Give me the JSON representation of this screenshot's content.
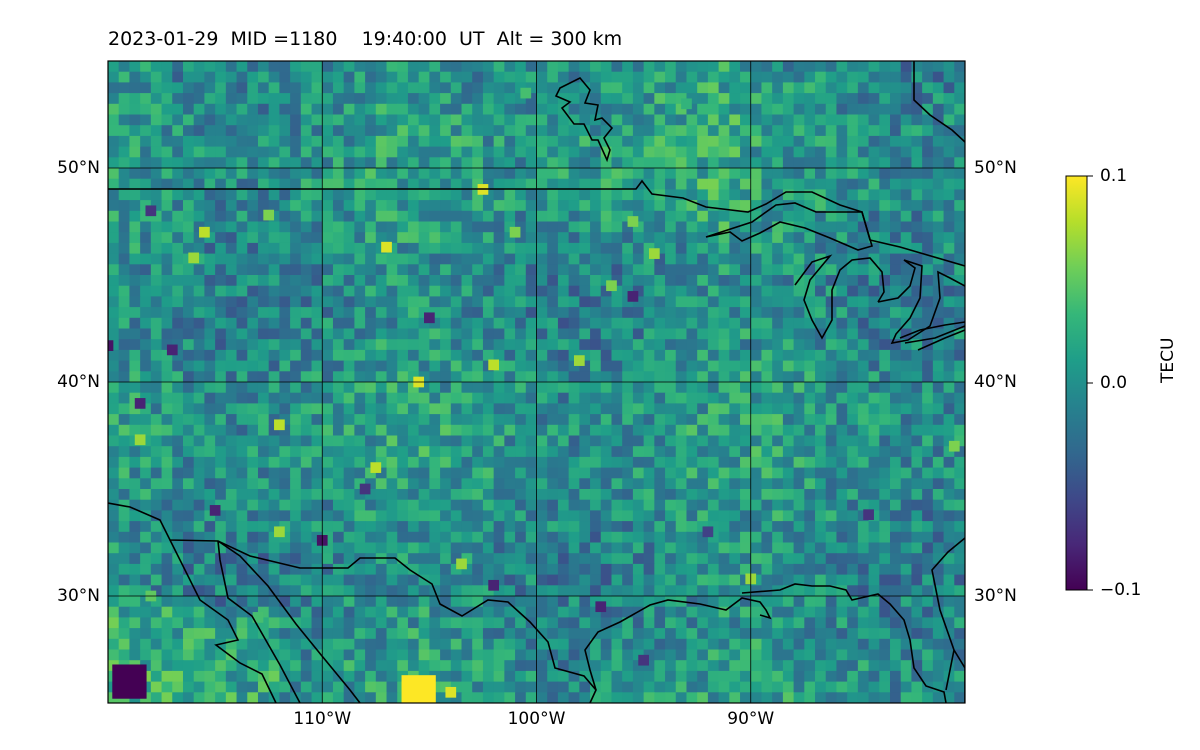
{
  "title": "2023-01-29  MID =1180    19:40:00  UT  Alt = 300 km",
  "chart_data": {
    "type": "heatmap",
    "title": "2023-01-29  MID =1180    19:40:00  UT  Alt = 300 km",
    "map": "North America (central/eastern US, Great Lakes region)",
    "projection": "PlateCarree",
    "lon_range": [
      -120,
      -80
    ],
    "lat_range": [
      25,
      55
    ],
    "gridlines": true,
    "lat_ticks": [
      {
        "value": 50,
        "label": "50°N"
      },
      {
        "value": 40,
        "label": "40°N"
      },
      {
        "value": 30,
        "label": "30°N"
      }
    ],
    "lon_ticks": [
      {
        "value": -110,
        "label": "110°W"
      },
      {
        "value": -100,
        "label": "100°W"
      },
      {
        "value": -90,
        "label": "90°W"
      }
    ],
    "colormap": "viridis",
    "colorbar": {
      "label": "TECU",
      "vmin": -0.1,
      "vmax": 0.1,
      "ticks": [
        {
          "value": 0.1,
          "label": "0.1"
        },
        {
          "value": 0.0,
          "label": "0.0"
        },
        {
          "value": -0.1,
          "label": "−0.1"
        }
      ],
      "colors": [
        "#440154",
        "#482878",
        "#3e4989",
        "#31688e",
        "#26828e",
        "#1f9e89",
        "#35b779",
        "#6ece58",
        "#b5de2b",
        "#fde725"
      ]
    },
    "field_description": "Differential TEC perturbation in TECU on approx. 0.5 degree grid; mostly values near 0.0 with scattered positive/negative pixels; larger positive patch near 26N 106W, negative patch near 26N 119W",
    "hotspots": [
      {
        "lon": -105.5,
        "lat": 25.5,
        "value": 0.1
      },
      {
        "lon": -104,
        "lat": 25.5,
        "value": 0.09
      },
      {
        "lon": -119,
        "lat": 26,
        "value": -0.1
      },
      {
        "lon": -115.5,
        "lat": 47,
        "value": 0.08
      },
      {
        "lon": -116,
        "lat": 45.8,
        "value": 0.07
      },
      {
        "lon": -112.5,
        "lat": 47.8,
        "value": 0.06
      },
      {
        "lon": -107,
        "lat": 46.3,
        "value": 0.09
      },
      {
        "lon": -102.5,
        "lat": 49,
        "value": 0.09
      },
      {
        "lon": -101,
        "lat": 47,
        "value": 0.06
      },
      {
        "lon": -95.5,
        "lat": 47.5,
        "value": 0.06
      },
      {
        "lon": -94.5,
        "lat": 46,
        "value": 0.07
      },
      {
        "lon": -96.5,
        "lat": 44.5,
        "value": 0.06
      },
      {
        "lon": -105.5,
        "lat": 40,
        "value": 0.09
      },
      {
        "lon": -102,
        "lat": 40.8,
        "value": 0.08
      },
      {
        "lon": -98,
        "lat": 41,
        "value": 0.07
      },
      {
        "lon": -112,
        "lat": 38,
        "value": 0.08
      },
      {
        "lon": -107.5,
        "lat": 36,
        "value": 0.08
      },
      {
        "lon": -112,
        "lat": 33,
        "value": 0.07
      },
      {
        "lon": -103.5,
        "lat": 31.5,
        "value": 0.07
      },
      {
        "lon": -80.5,
        "lat": 37,
        "value": 0.06
      },
      {
        "lon": -90,
        "lat": 30.8,
        "value": 0.07
      },
      {
        "lon": -118.5,
        "lat": 37.3,
        "value": 0.07
      },
      {
        "lon": -117,
        "lat": 41.5,
        "value": -0.08
      },
      {
        "lon": -118.5,
        "lat": 39,
        "value": -0.08
      },
      {
        "lon": -115,
        "lat": 34,
        "value": -0.08
      },
      {
        "lon": -110,
        "lat": 32.6,
        "value": -0.09
      },
      {
        "lon": -102,
        "lat": 30.5,
        "value": -0.08
      },
      {
        "lon": -97,
        "lat": 29.5,
        "value": -0.08
      },
      {
        "lon": -95.5,
        "lat": 44,
        "value": -0.08
      },
      {
        "lon": -105,
        "lat": 43,
        "value": -0.08
      },
      {
        "lon": -108,
        "lat": 35,
        "value": -0.07
      },
      {
        "lon": -120,
        "lat": 41.7,
        "value": -0.09
      },
      {
        "lon": -118,
        "lat": 48,
        "value": -0.07
      },
      {
        "lon": -92,
        "lat": 33,
        "value": -0.06
      },
      {
        "lon": -84.5,
        "lat": 33.8,
        "value": -0.07
      },
      {
        "lon": -95,
        "lat": 27,
        "value": -0.07
      },
      {
        "lon": -118,
        "lat": 30,
        "value": 0.05
      },
      {
        "lon": -113,
        "lat": 29,
        "value": 0.04
      },
      {
        "lon": -100.5,
        "lat": 53.5,
        "value": 0.04
      },
      {
        "lon": -93,
        "lat": 53,
        "value": 0.03
      }
    ],
    "coastlines": "Natural Earth coastlines and US/Canada border drawn in black"
  }
}
